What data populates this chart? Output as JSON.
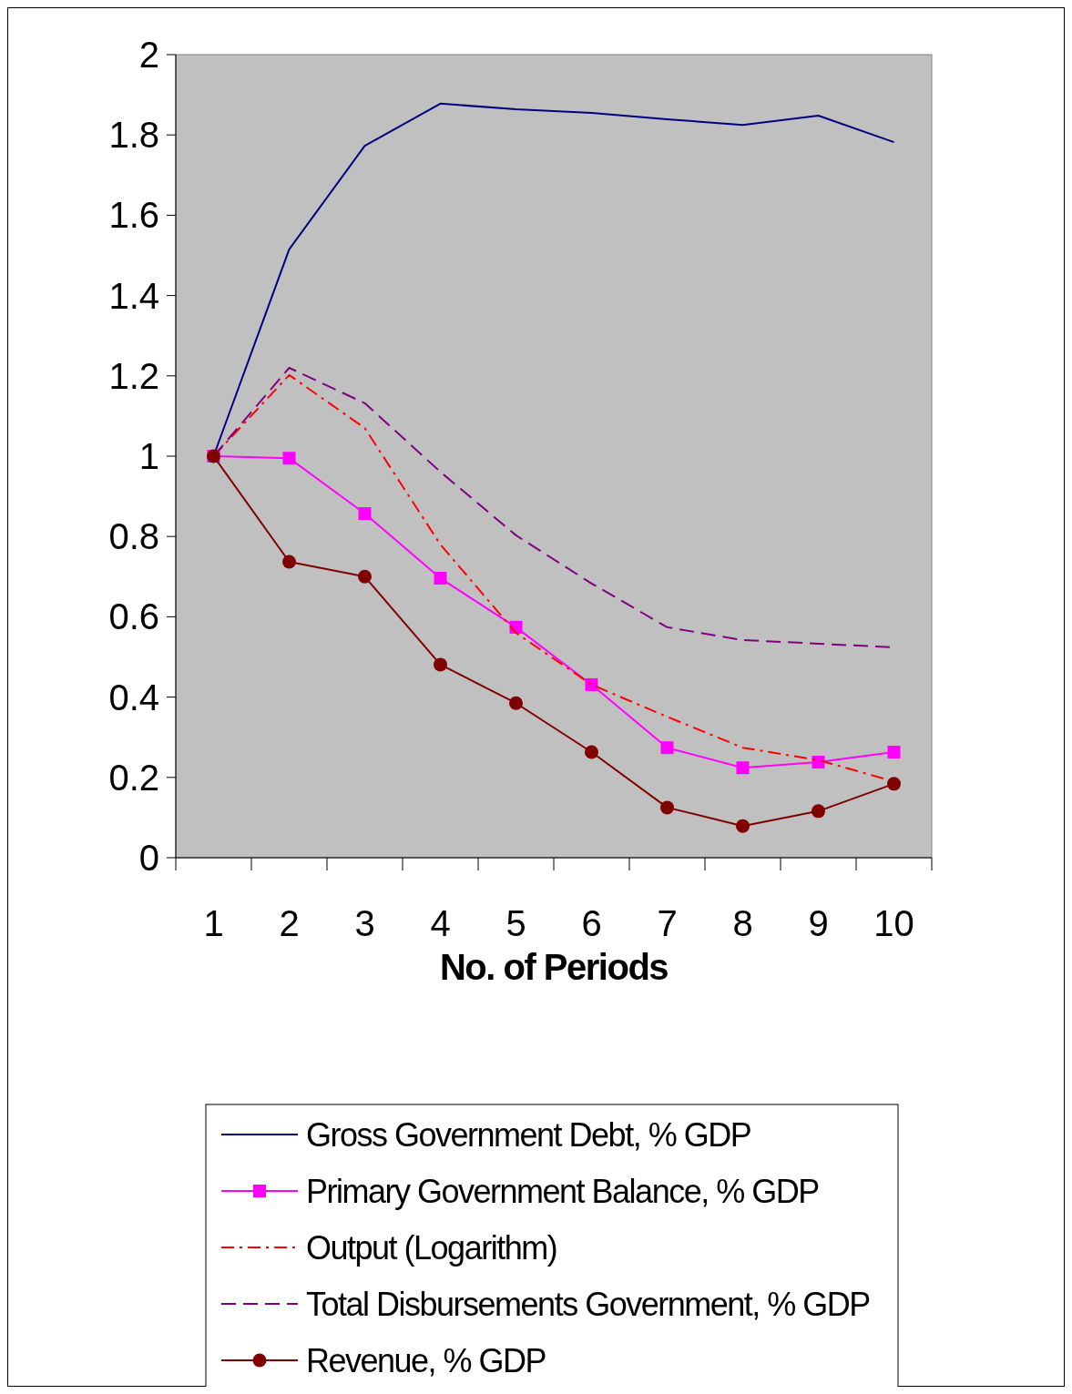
{
  "chart_data": {
    "type": "line",
    "xlabel": "No. of Periods",
    "categories": [
      "1",
      "2",
      "3",
      "4",
      "5",
      "6",
      "7",
      "8",
      "9",
      "10"
    ],
    "ylim": [
      0,
      2
    ],
    "yticks": [
      0,
      0.2,
      0.4,
      0.6,
      0.8,
      1,
      1.2,
      1.4,
      1.6,
      1.8,
      2
    ],
    "grid": false,
    "legend": "bottom",
    "series": [
      {
        "name": "Gross Government Debt, % GDP",
        "color": "#000080",
        "line_style": "solid",
        "marker": "none",
        "values": [
          1,
          1.515,
          1.773,
          1.878,
          1.864,
          1.855,
          1.839,
          1.825,
          1.848,
          1.782
        ]
      },
      {
        "name": "Primary Government Balance, % GDP",
        "color": "#ff00ff",
        "line_style": "solid",
        "marker": "square",
        "values": [
          1,
          0.995,
          0.857,
          0.696,
          0.574,
          0.431,
          0.274,
          0.224,
          0.238,
          0.263
        ]
      },
      {
        "name": "Output (Logarithm)",
        "color": "#ff0000",
        "line_style": "dashdot",
        "marker": "none",
        "values": [
          1,
          1.202,
          1.07,
          0.78,
          0.56,
          0.431,
          0.351,
          0.274,
          0.243,
          0.19
        ]
      },
      {
        "name": "Total Disbursements Government, % GDP",
        "color": "#800080",
        "line_style": "dashed",
        "marker": "none",
        "values": [
          1,
          1.22,
          1.132,
          0.961,
          0.803,
          0.683,
          0.574,
          0.542,
          0.533,
          0.524
        ]
      },
      {
        "name": "Revenue, % GDP",
        "color": "#800000",
        "line_style": "solid",
        "marker": "circle",
        "values": [
          1,
          0.737,
          0.7,
          0.481,
          0.385,
          0.263,
          0.125,
          0.079,
          0.116,
          0.184
        ]
      }
    ]
  }
}
